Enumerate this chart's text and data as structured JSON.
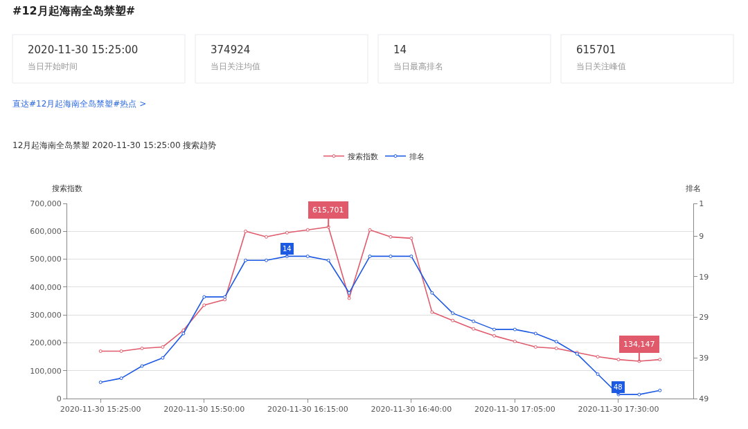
{
  "chart_data": [
    {
      "type": "other",
      "title": "#12月起海南全岛禁塑#",
      "annotations": [
        "2020-11-30 15:25:00",
        "当日开始时间",
        "374924",
        "当日关注均值",
        "14",
        "当日最高排名",
        "615701",
        "当日关注峰值",
        "直达#12月起海南全岛禁塑#热点 >"
      ]
    },
    {
      "type": "line",
      "title": "12月起海南全岛禁塑 2020-11-30 15:25:00 搜索趋势",
      "ylabel": "搜索指数",
      "y2label": "排名",
      "categories": [
        "2020-11-30 15:25:00",
        null,
        null,
        null,
        null,
        "2020-11-30 15:50:00",
        null,
        null,
        null,
        null,
        "2020-11-30 16:15:00",
        null,
        null,
        null,
        null,
        "2020-11-30 16:40:00",
        null,
        null,
        null,
        null,
        "2020-11-30 17:05:00",
        null,
        null,
        null,
        null,
        "2020-11-30 17:30:00",
        null,
        null
      ],
      "series": [
        {
          "name": "搜索指数",
          "color": "#e05a6b",
          "values": [
            170000,
            170000,
            180000,
            185000,
            245000,
            335000,
            355000,
            600000,
            580000,
            595000,
            605000,
            615701,
            360000,
            605000,
            580000,
            575000,
            310000,
            280000,
            250000,
            225000,
            205000,
            185000,
            180000,
            165000,
            150000,
            140000,
            134147,
            140000
          ]
        },
        {
          "name": "排名",
          "color": "#1d5ae3",
          "axis": "y2",
          "values": [
            45,
            44,
            41,
            39,
            33,
            24,
            24,
            15,
            15,
            14,
            14,
            15,
            23,
            14,
            14,
            14,
            23,
            28,
            30,
            32,
            32,
            33,
            35,
            38,
            43,
            48,
            48,
            47
          ]
        }
      ],
      "ylim": [
        0,
        700000
      ],
      "yticks": [
        0,
        {
          "value": 100000,
          "label": "100,000"
        },
        {
          "value": 200000,
          "label": "200,000"
        },
        {
          "value": 300000,
          "label": "300,000"
        },
        {
          "value": 400000,
          "label": "400,000"
        },
        {
          "value": 500000,
          "label": "500,000"
        },
        {
          "value": 600000,
          "label": "600,000"
        },
        {
          "value": 700000,
          "label": "700,000"
        }
      ],
      "y2lim": [
        49,
        1
      ],
      "y2ticks": [
        1,
        9,
        19,
        29,
        39,
        49
      ],
      "annotations": [
        {
          "text": "615,701",
          "y": 615701
        },
        {
          "text": "134,147",
          "y": 134147
        },
        "14",
        "48"
      ],
      "grid": "y",
      "legend": "top",
      "marker": "circle"
    }
  ]
}
